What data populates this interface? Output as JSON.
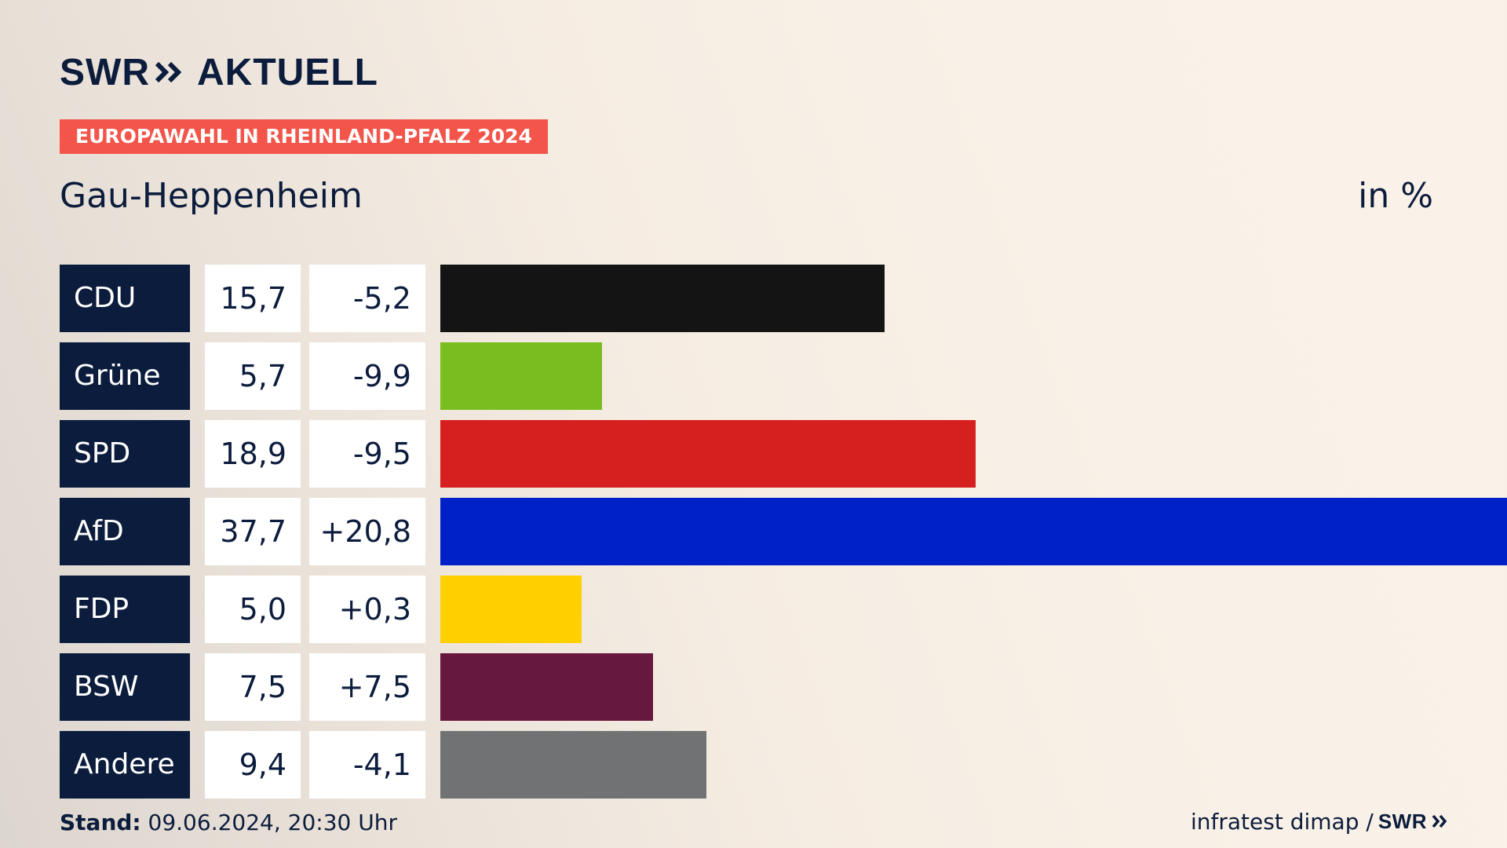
{
  "brand": {
    "swr": "SWR",
    "aktuell": "AKTUELL"
  },
  "tag": "EUROPAWAHL IN RHEINLAND-PFALZ 2024",
  "subtitle": "Gau-Heppenheim",
  "unit": "in %",
  "chart_data": {
    "type": "bar",
    "orientation": "horizontal",
    "categories": [
      "CDU",
      "Grüne",
      "SPD",
      "AfD",
      "FDP",
      "BSW",
      "Andere"
    ],
    "values": [
      15.7,
      5.7,
      18.9,
      37.7,
      5.0,
      7.5,
      9.4
    ],
    "value_labels": [
      "15,7",
      "5,7",
      "18,9",
      "37,7",
      "5,0",
      "7,5",
      "9,4"
    ],
    "diff_values": [
      -5.2,
      -9.9,
      -9.5,
      20.8,
      0.3,
      7.5,
      -4.1
    ],
    "diff_labels": [
      "-5,2",
      "-9,9",
      "-9,5",
      "+20,8",
      "+0,3",
      "+7,5",
      "-4,1"
    ],
    "colors": [
      "#141414",
      "#7abd1e",
      "#d61f1f",
      "#0020c8",
      "#ffd000",
      "#66183e",
      "#717274"
    ]
  },
  "footer": {
    "stand_label": "Stand:",
    "stand_value": "09.06.2024, 20:30 Uhr",
    "source": "infratest dimap /",
    "source_brand": "SWR"
  }
}
